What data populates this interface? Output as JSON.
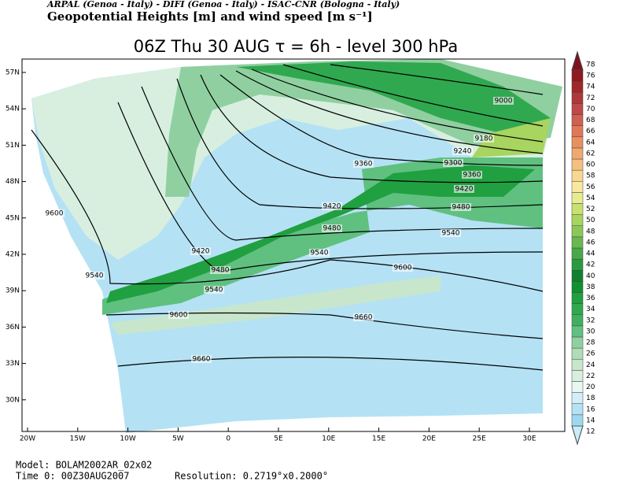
{
  "header": {
    "credit": "ARPAL (Genoa - Italy)  -  DIFI (Genoa - Italy)  -  ISAC-CNR (Bologna - Italy)",
    "title": "Geopotential Heights [m] and wind speed [m s⁻¹]",
    "subtitle": "06Z Thu 30 AUG  τ = 6h  -  level 300 hPa"
  },
  "map": {
    "lat_labels": [
      "57N",
      "54N",
      "51N",
      "48N",
      "45N",
      "42N",
      "39N",
      "36N",
      "33N",
      "30N"
    ],
    "lon_labels": [
      "20W",
      "15W",
      "10W",
      "5W",
      "0",
      "5E",
      "10E",
      "15E",
      "20E",
      "25E",
      "30E"
    ],
    "contour_labels": [
      "9000",
      "9180",
      "9240",
      "9300",
      "9360",
      "9360",
      "9420",
      "9420",
      "9480",
      "9480",
      "9540",
      "9540",
      "9600",
      "9420",
      "9480",
      "9540",
      "9540",
      "9600",
      "9600",
      "9660",
      "9660"
    ]
  },
  "colorbar": {
    "labels": [
      "12",
      "14",
      "16",
      "18",
      "20",
      "22",
      "24",
      "26",
      "28",
      "30",
      "32",
      "34",
      "36",
      "38",
      "40",
      "42",
      "44",
      "46",
      "48",
      "50",
      "52",
      "54",
      "56",
      "58",
      "60",
      "62",
      "64",
      "66",
      "68",
      "70",
      "72",
      "74",
      "76",
      "78"
    ],
    "colors": [
      "#c8ecf8",
      "#9ed8f0",
      "#b4e2f4",
      "#d2eef8",
      "#e8f6f4",
      "#d8efe0",
      "#c8e6cc",
      "#b0dcb8",
      "#90d0a0",
      "#60c080",
      "#40b060",
      "#30a850",
      "#20a040",
      "#109030",
      "#108030",
      "#2a9a40",
      "#4aa84a",
      "#6ab850",
      "#8cc858",
      "#a8d460",
      "#c8e070",
      "#e8ec90",
      "#f8e8a0",
      "#f8d890",
      "#f4c080",
      "#f0a870",
      "#e89060",
      "#e07858",
      "#d06050",
      "#c04848",
      "#b03838",
      "#a02828",
      "#901820",
      "#801020"
    ]
  },
  "footer": {
    "model": "Model: BOLAM2002AR_02x02",
    "time": "Time 0: 00Z30AUG2007",
    "resolution": "Resolution: 0.2719°x0.2000°"
  }
}
